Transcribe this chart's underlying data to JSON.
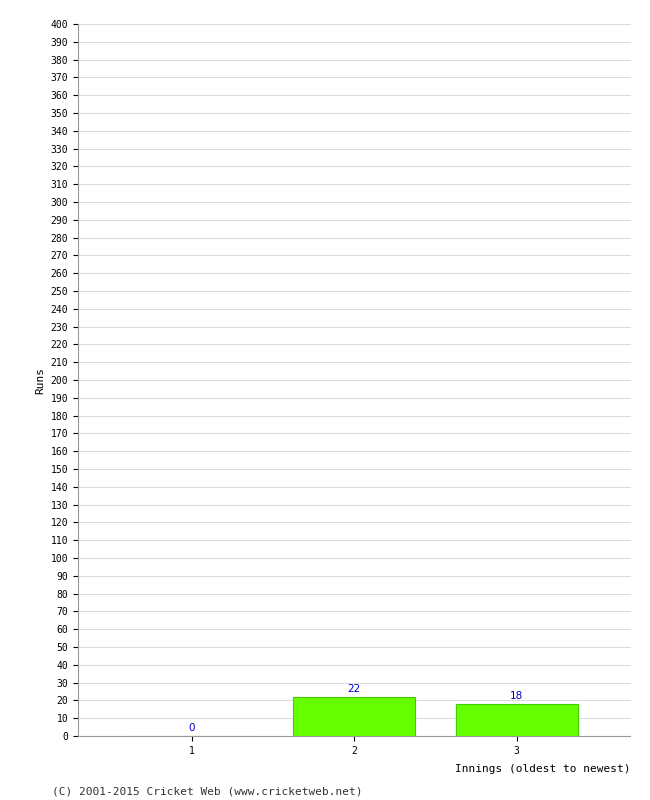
{
  "categories": [
    "1",
    "2",
    "3"
  ],
  "values": [
    0,
    22,
    18
  ],
  "bar_color": "#66ff00",
  "bar_edge_color": "#44cc00",
  "value_label_color": "#0000cc",
  "xlabel": "Innings (oldest to newest)",
  "ylabel": "Runs",
  "ylim": [
    0,
    400
  ],
  "ytick_step": 10,
  "background_color": "#ffffff",
  "grid_color": "#cccccc",
  "footer_text": "(C) 2001-2015 Cricket Web (www.cricketweb.net)",
  "value_fontsize": 7.5,
  "label_fontsize": 8,
  "tick_fontsize": 7,
  "footer_fontsize": 8
}
